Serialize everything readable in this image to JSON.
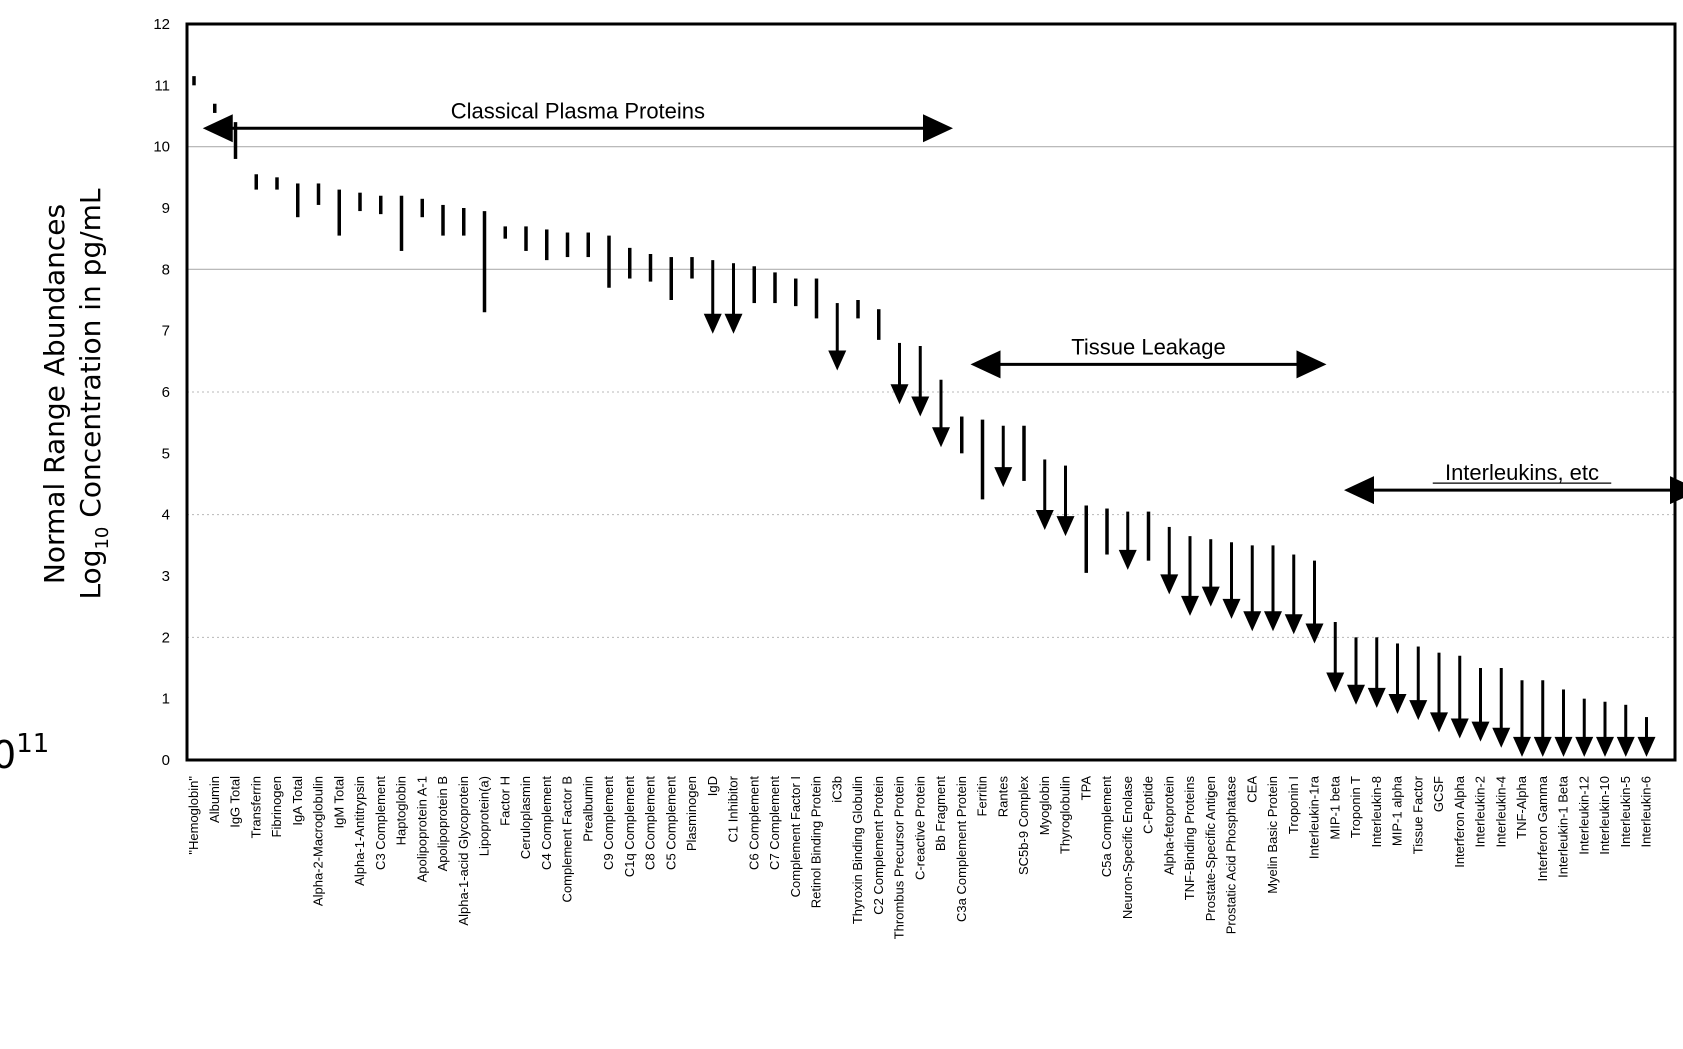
{
  "chart_data": {
    "type": "bar",
    "ylabel_line1": "Normal Range Abundances",
    "ylabel_line2_prefix": "Log",
    "ylabel_line2_sub": "10",
    "ylabel_line2_suffix": " Concentration in pg/mL",
    "ylim": [
      0,
      12
    ],
    "yticks": [
      "0",
      "1",
      "2",
      "3",
      "4",
      "5",
      "6",
      "7",
      "8",
      "9",
      "10",
      "11",
      "12"
    ],
    "solid_gridlines": [
      8,
      10
    ],
    "dotted_gridlines": [
      2,
      4,
      6
    ],
    "edge_fragment": {
      "base": "0",
      "sup": "11"
    },
    "groups": [
      {
        "label": "Classical Plasma Proteins",
        "start_index": 1,
        "end_index": 36,
        "y": 10.3,
        "left_arrow": true,
        "right_arrow": true
      },
      {
        "label": "Tissue Leakage",
        "start_index": 38,
        "end_index": 54,
        "y": 6.45,
        "left_arrow": true,
        "right_arrow": true
      },
      {
        "label": "Interleukins, etc",
        "start_index": 56,
        "end_index": 72,
        "y": 4.4,
        "left_arrow": true,
        "right_arrow": true,
        "underline": true
      }
    ],
    "series": [
      {
        "name": "",
        "points": [
          {
            "category": "\"Hemoglobin\"",
            "high": 11.15,
            "low": 11.0,
            "arrow": false
          },
          {
            "category": "Albumin",
            "high": 10.7,
            "low": 10.55,
            "arrow": false
          },
          {
            "category": "IgG Total",
            "high": 10.4,
            "low": 9.8,
            "arrow": false
          },
          {
            "category": "Transferrin",
            "high": 9.55,
            "low": 9.3,
            "arrow": false
          },
          {
            "category": "Fibrinogen",
            "high": 9.5,
            "low": 9.3,
            "arrow": false
          },
          {
            "category": "IgA Total",
            "high": 9.4,
            "low": 8.85,
            "arrow": false
          },
          {
            "category": "Alpha-2-Macroglobulin",
            "high": 9.4,
            "low": 9.05,
            "arrow": false
          },
          {
            "category": "IgM Total",
            "high": 9.3,
            "low": 8.55,
            "arrow": false
          },
          {
            "category": "Alpha-1-Antitrypsin",
            "high": 9.25,
            "low": 8.95,
            "arrow": false
          },
          {
            "category": "C3 Complement",
            "high": 9.2,
            "low": 8.9,
            "arrow": false
          },
          {
            "category": "Haptoglobin",
            "high": 9.2,
            "low": 8.3,
            "arrow": false
          },
          {
            "category": "Apolipoprotein A-1",
            "high": 9.15,
            "low": 8.85,
            "arrow": false
          },
          {
            "category": "Apolipoprotein B",
            "high": 9.05,
            "low": 8.55,
            "arrow": false
          },
          {
            "category": "Alpha-1-acid Glycoprotein",
            "high": 9.0,
            "low": 8.55,
            "arrow": false
          },
          {
            "category": "Lipoprotein(a)",
            "high": 8.95,
            "low": 7.3,
            "arrow": false
          },
          {
            "category": "Factor H",
            "high": 8.7,
            "low": 8.5,
            "arrow": false
          },
          {
            "category": "Ceruloplasmin",
            "high": 8.7,
            "low": 8.3,
            "arrow": false
          },
          {
            "category": "C4 Complement",
            "high": 8.65,
            "low": 8.15,
            "arrow": false
          },
          {
            "category": "Complement Factor B",
            "high": 8.6,
            "low": 8.2,
            "arrow": false
          },
          {
            "category": "Prealbumin",
            "high": 8.6,
            "low": 8.2,
            "arrow": false
          },
          {
            "category": "C9 Complement",
            "high": 8.55,
            "low": 7.7,
            "arrow": false
          },
          {
            "category": "C1q Complement",
            "high": 8.35,
            "low": 7.85,
            "arrow": false
          },
          {
            "category": "C8 Complement",
            "high": 8.25,
            "low": 7.8,
            "arrow": false
          },
          {
            "category": "C5 Complement",
            "high": 8.2,
            "low": 7.5,
            "arrow": false
          },
          {
            "category": "Plasminogen",
            "high": 8.2,
            "low": 7.85,
            "arrow": false
          },
          {
            "category": "IgD",
            "high": 8.15,
            "low": 6.95,
            "arrow": true
          },
          {
            "category": "C1 Inhibitor",
            "high": 8.1,
            "low": 6.95,
            "arrow": true
          },
          {
            "category": "C6 Complement",
            "high": 8.05,
            "low": 7.45,
            "arrow": false
          },
          {
            "category": "C7 Complement",
            "high": 7.95,
            "low": 7.45,
            "arrow": false
          },
          {
            "category": "Complement Factor I",
            "high": 7.85,
            "low": 7.4,
            "arrow": false
          },
          {
            "category": "Retinol Binding Protein",
            "high": 7.85,
            "low": 7.2,
            "arrow": false
          },
          {
            "category": "iC3b",
            "high": 7.45,
            "low": 6.35,
            "arrow": true
          },
          {
            "category": "Thyroxin Binding Globulin",
            "high": 7.5,
            "low": 7.2,
            "arrow": false
          },
          {
            "category": "C2 Complement Protein",
            "high": 7.35,
            "low": 6.85,
            "arrow": false
          },
          {
            "category": "Thrombus Precursor Protein",
            "high": 6.8,
            "low": 5.8,
            "arrow": true
          },
          {
            "category": "C-reactive Protein",
            "high": 6.75,
            "low": 5.6,
            "arrow": true
          },
          {
            "category": "Bb Fragment",
            "high": 6.2,
            "low": 5.1,
            "arrow": true
          },
          {
            "category": "C3a Complement Protein",
            "high": 5.6,
            "low": 5.0,
            "arrow": false
          },
          {
            "category": "Ferritin",
            "high": 5.55,
            "low": 4.25,
            "arrow": false
          },
          {
            "category": "Rantes",
            "high": 5.45,
            "low": 4.45,
            "arrow": true
          },
          {
            "category": "SC5b-9 Complex",
            "high": 5.45,
            "low": 4.55,
            "arrow": false
          },
          {
            "category": "Myoglobin",
            "high": 4.9,
            "low": 3.75,
            "arrow": true
          },
          {
            "category": "Thyroglobulin",
            "high": 4.8,
            "low": 3.65,
            "arrow": true
          },
          {
            "category": "TPA",
            "high": 4.15,
            "low": 3.05,
            "arrow": false
          },
          {
            "category": "C5a Complement",
            "high": 4.1,
            "low": 3.35,
            "arrow": false
          },
          {
            "category": "Neuron-Specific Enolase",
            "high": 4.05,
            "low": 3.1,
            "arrow": true
          },
          {
            "category": "C-Peptide",
            "high": 4.05,
            "low": 3.25,
            "arrow": false
          },
          {
            "category": "Alpha-fetoprotein",
            "high": 3.8,
            "low": 2.7,
            "arrow": true
          },
          {
            "category": "TNF-Binding Proteins",
            "high": 3.65,
            "low": 2.35,
            "arrow": true
          },
          {
            "category": "Prostate-Specific Antigen",
            "high": 3.6,
            "low": 2.5,
            "arrow": true
          },
          {
            "category": "Prostatic Acid Phosphatase",
            "high": 3.55,
            "low": 2.3,
            "arrow": true
          },
          {
            "category": "CEA",
            "high": 3.5,
            "low": 2.1,
            "arrow": true
          },
          {
            "category": "Myelin Basic Protein",
            "high": 3.5,
            "low": 2.1,
            "arrow": true
          },
          {
            "category": "Troponin I",
            "high": 3.35,
            "low": 2.05,
            "arrow": true
          },
          {
            "category": "Interleukin-1ra",
            "high": 3.25,
            "low": 1.9,
            "arrow": true
          },
          {
            "category": "MIP-1 beta",
            "high": 2.25,
            "low": 1.1,
            "arrow": true
          },
          {
            "category": "Troponin T",
            "high": 2.0,
            "low": 0.9,
            "arrow": true
          },
          {
            "category": "Interleukin-8",
            "high": 2.0,
            "low": 0.85,
            "arrow": true
          },
          {
            "category": "MIP-1 alpha",
            "high": 1.9,
            "low": 0.75,
            "arrow": true
          },
          {
            "category": "Tissue Factor",
            "high": 1.85,
            "low": 0.65,
            "arrow": true
          },
          {
            "category": "GCSF",
            "high": 1.75,
            "low": 0.45,
            "arrow": true
          },
          {
            "category": "Interferon Alpha",
            "high": 1.7,
            "low": 0.35,
            "arrow": true
          },
          {
            "category": "Interleukin-2",
            "high": 1.5,
            "low": 0.3,
            "arrow": true
          },
          {
            "category": "Interleukin-4",
            "high": 1.5,
            "low": 0.2,
            "arrow": true
          },
          {
            "category": "TNF-Alpha",
            "high": 1.3,
            "low": 0.05,
            "arrow": true
          },
          {
            "category": "Interferon Gamma",
            "high": 1.3,
            "low": 0.05,
            "arrow": true
          },
          {
            "category": "Interleukin-1 Beta",
            "high": 1.15,
            "low": 0.05,
            "arrow": true
          },
          {
            "category": "Interleukin-12",
            "high": 1.0,
            "low": 0.05,
            "arrow": true
          },
          {
            "category": "Interleukin-10",
            "high": 0.95,
            "low": 0.05,
            "arrow": true
          },
          {
            "category": "Interleukin-5",
            "high": 0.9,
            "low": 0.05,
            "arrow": true
          },
          {
            "category": "Interleukin-6",
            "high": 0.7,
            "low": 0.05,
            "arrow": true
          }
        ]
      }
    ]
  }
}
